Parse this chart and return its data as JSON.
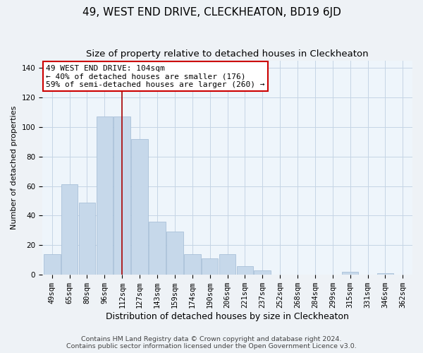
{
  "title": "49, WEST END DRIVE, CLECKHEATON, BD19 6JD",
  "subtitle": "Size of property relative to detached houses in Cleckheaton",
  "xlabel": "Distribution of detached houses by size in Cleckheaton",
  "ylabel": "Number of detached properties",
  "bar_labels": [
    "49sqm",
    "65sqm",
    "80sqm",
    "96sqm",
    "112sqm",
    "127sqm",
    "143sqm",
    "159sqm",
    "174sqm",
    "190sqm",
    "206sqm",
    "221sqm",
    "237sqm",
    "252sqm",
    "268sqm",
    "284sqm",
    "299sqm",
    "315sqm",
    "331sqm",
    "346sqm",
    "362sqm"
  ],
  "bar_values": [
    14,
    61,
    49,
    107,
    107,
    92,
    36,
    29,
    14,
    11,
    14,
    6,
    3,
    0,
    0,
    0,
    0,
    2,
    0,
    1,
    0
  ],
  "bar_color": "#c6d8ea",
  "bar_edge_color": "#a8c0d8",
  "ylim": [
    0,
    145
  ],
  "yticks": [
    0,
    20,
    40,
    60,
    80,
    100,
    120,
    140
  ],
  "annotation_text": "49 WEST END DRIVE: 104sqm\n← 40% of detached houses are smaller (176)\n59% of semi-detached houses are larger (260) →",
  "vline_color": "#aa0000",
  "annotation_box_facecolor": "#ffffff",
  "annotation_box_edgecolor": "#cc0000",
  "footer_line1": "Contains HM Land Registry data © Crown copyright and database right 2024.",
  "footer_line2": "Contains public sector information licensed under the Open Government Licence v3.0.",
  "bg_color": "#eef2f6",
  "plot_bg_color": "#eef5fb",
  "grid_color": "#c5d5e5",
  "title_fontsize": 11,
  "subtitle_fontsize": 9.5,
  "xlabel_fontsize": 9,
  "ylabel_fontsize": 8,
  "tick_fontsize": 7.5,
  "annotation_fontsize": 8,
  "footer_fontsize": 6.8
}
